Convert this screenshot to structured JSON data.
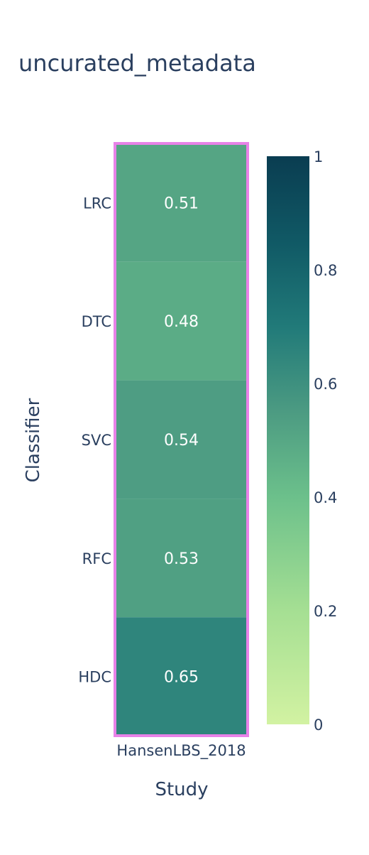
{
  "chart_data": {
    "type": "heatmap",
    "title": "uncurated_metadata",
    "xlabel": "Study",
    "ylabel": "Classifier",
    "x_categories": [
      "HansenLBS_2018"
    ],
    "y_categories": [
      "LRC",
      "DTC",
      "SVC",
      "RFC",
      "HDC"
    ],
    "values": [
      [
        0.51
      ],
      [
        0.48
      ],
      [
        0.54
      ],
      [
        0.53
      ],
      [
        0.65
      ]
    ],
    "value_labels": [
      "0.51",
      "0.48",
      "0.54",
      "0.53",
      "0.65"
    ],
    "zlim": [
      0,
      1
    ],
    "colorscale": {
      "name": "aggrnyl (reversed)",
      "stops": [
        [
          0.0,
          "#d2f2a2"
        ],
        [
          0.2,
          "#a5df93"
        ],
        [
          0.4,
          "#6cc08b"
        ],
        [
          0.55,
          "#4c9b82"
        ],
        [
          0.7,
          "#217a79"
        ],
        [
          0.85,
          "#105965"
        ],
        [
          1.0,
          "#0a3d51"
        ]
      ]
    },
    "colorbar_ticks": [
      "0",
      "0.2",
      "0.4",
      "0.6",
      "0.8",
      "1"
    ],
    "colorbar_tick_values": [
      0,
      0.2,
      0.4,
      0.6,
      0.8,
      1
    ],
    "highlight_color": "#e882e8",
    "text_color": "#2a3f5f",
    "cell_text_color": "#ffffff",
    "legend": "colorbar-right",
    "grid": false
  }
}
